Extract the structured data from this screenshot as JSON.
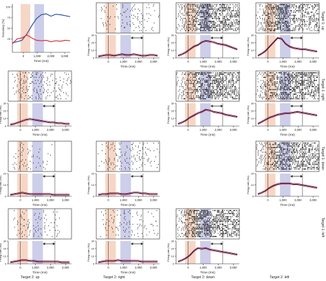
{
  "figure": {
    "background": "#ffffff",
    "colors": {
      "epoch1": "#f3c9b3",
      "epoch2": "#c4c6e6",
      "raster": "#111111",
      "trace": "#111111",
      "error": "#c8326e",
      "accuracy_blue": "#2b4fa3",
      "accuracy_red": "#d0323c",
      "axis": "#222222"
    },
    "time_ticks": [
      "0",
      "1,000",
      "2,000",
      "3,000"
    ],
    "time_label": "Time (ms)",
    "rate_label": "Firing rate (Hz)",
    "accuracy": {
      "ylabel": "Accuracy (%)",
      "yticks": [
        "100",
        "75",
        "50",
        "25"
      ],
      "xticks": [
        "0",
        "1,000",
        "2,000",
        "3,000"
      ],
      "xlabel": "Time (ms)",
      "blue_series": [
        20,
        22,
        25,
        38,
        55,
        70,
        78,
        80,
        75,
        79,
        78,
        76,
        74
      ],
      "red_series": [
        18,
        28,
        30,
        36,
        30,
        25,
        24,
        25,
        22,
        24,
        23,
        25,
        24
      ]
    },
    "rate_ticks": {
      "row1": [
        "0",
        "10",
        "20",
        "30"
      ],
      "row2": [
        "0",
        "10",
        "20",
        "30"
      ],
      "row3": [
        "0",
        "10",
        "20"
      ],
      "row4": [
        "0",
        "10",
        "20",
        "30"
      ]
    },
    "columns": [
      "Target 2: up",
      "Target 2: right",
      "Target 2: down",
      "Target 2: left"
    ],
    "rows": [
      "Target 1: up",
      "Target 1: right",
      "Target 1: down",
      "Target 1: left"
    ],
    "panels": [
      {
        "row": 0,
        "col": 1,
        "density": 0.45,
        "profile": [
          2,
          3,
          4,
          4,
          3,
          4,
          5,
          4,
          4,
          5,
          4,
          3,
          3,
          4,
          4,
          3
        ]
      },
      {
        "row": 0,
        "col": 2,
        "density": 0.9,
        "profile": [
          3,
          5,
          8,
          12,
          16,
          18,
          22,
          24,
          23,
          22,
          20,
          19,
          18,
          16,
          14,
          12
        ]
      },
      {
        "row": 0,
        "col": 3,
        "density": 0.9,
        "profile": [
          3,
          6,
          10,
          16,
          22,
          28,
          27,
          20,
          16,
          14,
          13,
          12,
          12,
          11,
          10,
          9
        ]
      },
      {
        "row": 1,
        "col": 0,
        "density": 0.45,
        "profile": [
          2,
          3,
          5,
          7,
          9,
          10,
          9,
          8,
          7,
          6,
          5,
          5,
          4,
          4,
          3,
          3
        ]
      },
      {
        "row": 1,
        "col": 2,
        "density": 0.9,
        "profile": [
          3,
          5,
          8,
          12,
          15,
          18,
          20,
          23,
          22,
          20,
          19,
          18,
          16,
          15,
          14,
          13
        ]
      },
      {
        "row": 1,
        "col": 3,
        "density": 0.9,
        "profile": [
          3,
          6,
          9,
          12,
          14,
          16,
          17,
          18,
          18,
          19,
          20,
          19,
          18,
          17,
          16,
          15
        ]
      },
      {
        "row": 2,
        "col": 0,
        "density": 0.4,
        "profile": [
          2,
          3,
          4,
          5,
          4,
          3,
          3,
          3,
          3,
          3,
          3,
          2,
          2,
          2,
          2,
          2
        ]
      },
      {
        "row": 2,
        "col": 1,
        "density": 0.5,
        "profile": [
          2,
          3,
          3,
          4,
          4,
          4,
          3,
          3,
          4,
          5,
          5,
          4,
          4,
          3,
          3,
          3
        ]
      },
      {
        "row": 2,
        "col": 3,
        "density": 0.85,
        "profile": [
          3,
          5,
          8,
          12,
          15,
          17,
          18,
          18,
          18,
          17,
          17,
          16,
          15,
          14,
          13,
          12
        ]
      },
      {
        "row": 3,
        "col": 0,
        "density": 0.45,
        "profile": [
          2,
          3,
          4,
          5,
          5,
          4,
          4,
          3,
          3,
          3,
          3,
          3,
          3,
          2,
          2,
          2
        ]
      },
      {
        "row": 3,
        "col": 1,
        "density": 0.45,
        "profile": [
          2,
          3,
          4,
          4,
          4,
          5,
          4,
          4,
          4,
          4,
          4,
          3,
          3,
          3,
          3,
          3
        ]
      },
      {
        "row": 3,
        "col": 2,
        "density": 0.9,
        "profile": [
          3,
          5,
          8,
          12,
          18,
          22,
          21,
          22,
          20,
          19,
          18,
          17,
          16,
          15,
          14,
          13
        ]
      }
    ]
  }
}
